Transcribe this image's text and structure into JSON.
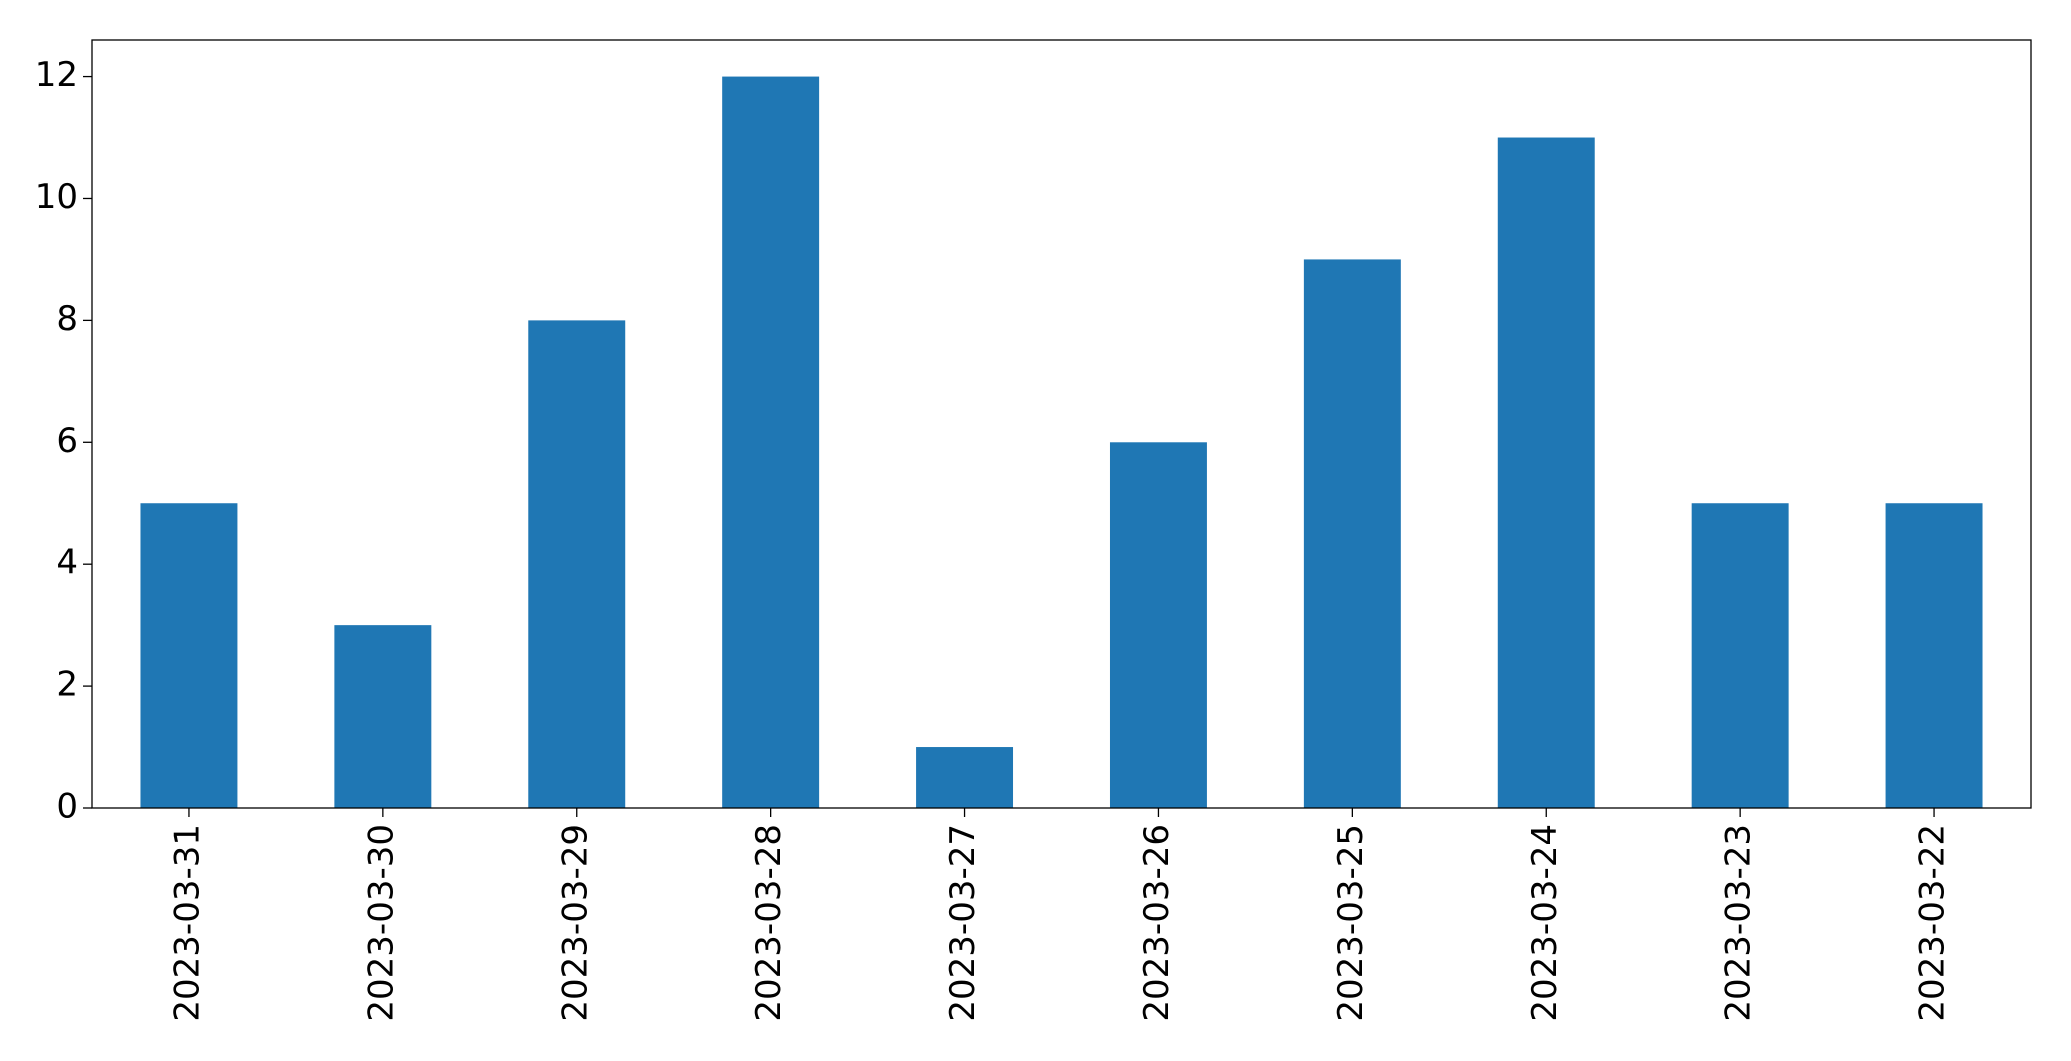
{
  "chart_data": {
    "type": "bar",
    "categories": [
      "2023-03-31",
      "2023-03-30",
      "2023-03-29",
      "2023-03-28",
      "2023-03-27",
      "2023-03-26",
      "2023-03-25",
      "2023-03-24",
      "2023-03-23",
      "2023-03-22"
    ],
    "values": [
      5,
      3,
      8,
      12,
      1,
      6,
      9,
      11,
      5,
      5
    ],
    "color": "#1f77b4",
    "ylim": [
      0,
      12.6
    ],
    "yticks": [
      0,
      2,
      4,
      6,
      8,
      10,
      12
    ],
    "grid": false
  }
}
